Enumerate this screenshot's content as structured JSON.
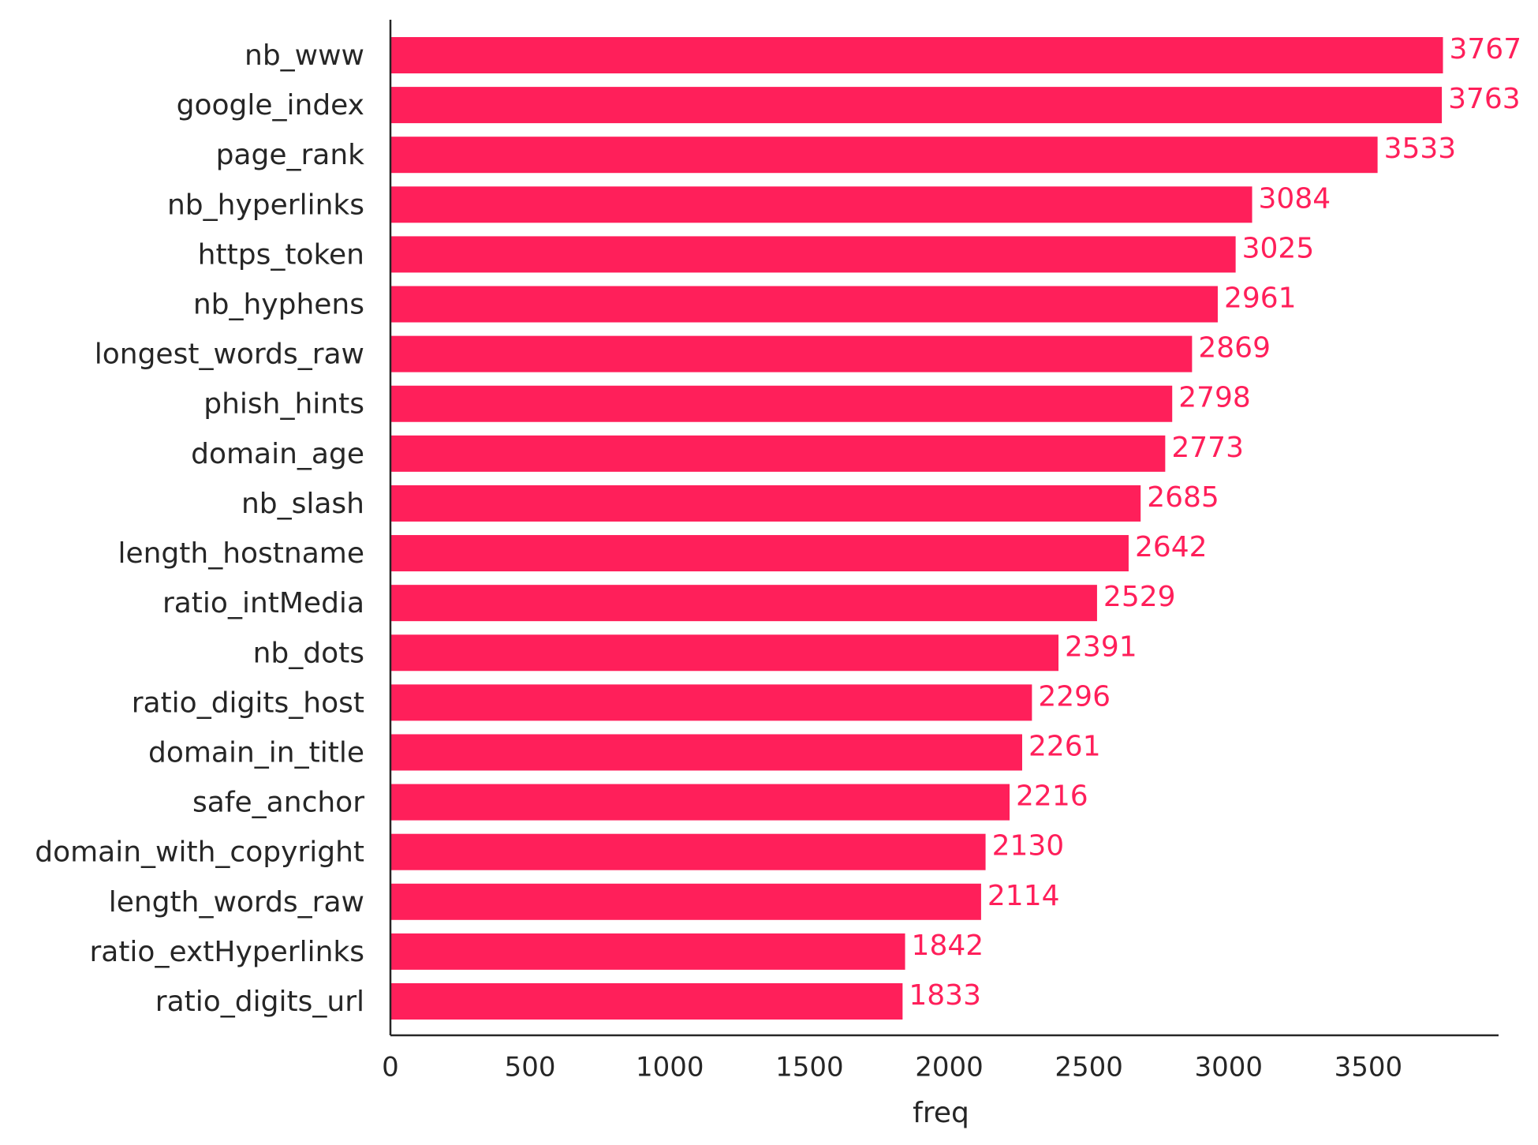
{
  "chart_data": {
    "type": "barh",
    "x_label": "freq",
    "color": "#ff1f5a",
    "categories": [
      "nb_www",
      "google_index",
      "page_rank",
      "nb_hyperlinks",
      "https_token",
      "nb_hyphens",
      "longest_words_raw",
      "phish_hints",
      "domain_age",
      "nb_slash",
      "length_hostname",
      "ratio_intMedia",
      "nb_dots",
      "ratio_digits_host",
      "domain_in_title",
      "safe_anchor",
      "domain_with_copyright",
      "length_words_raw",
      "ratio_extHyperlinks",
      "ratio_digits_url"
    ],
    "values": [
      3767,
      3763,
      3533,
      3084,
      3025,
      2961,
      2869,
      2798,
      2773,
      2685,
      2642,
      2529,
      2391,
      2296,
      2261,
      2216,
      2130,
      2114,
      1842,
      1833
    ],
    "xlim": [
      0,
      3966
    ],
    "xticks": [
      0,
      500,
      1000,
      1500,
      2000,
      2500,
      3000,
      3500
    ]
  }
}
